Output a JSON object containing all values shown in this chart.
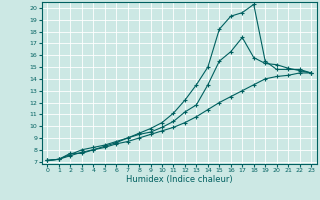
{
  "title": "",
  "xlabel": "Humidex (Indice chaleur)",
  "ylabel": "",
  "background_color": "#cce8e4",
  "line_color": "#006060",
  "grid_color": "#aad4d0",
  "xlim": [
    -0.5,
    23.5
  ],
  "ylim": [
    6.8,
    20.5
  ],
  "yticks": [
    7,
    8,
    9,
    10,
    11,
    12,
    13,
    14,
    15,
    16,
    17,
    18,
    19,
    20
  ],
  "xticks": [
    0,
    1,
    2,
    3,
    4,
    5,
    6,
    7,
    8,
    9,
    10,
    11,
    12,
    13,
    14,
    15,
    16,
    17,
    18,
    19,
    20,
    21,
    22,
    23
  ],
  "curve1_x": [
    0,
    1,
    2,
    3,
    4,
    5,
    6,
    7,
    8,
    9,
    10,
    11,
    12,
    13,
    14,
    15,
    16,
    17,
    18,
    19,
    20,
    21,
    22,
    23
  ],
  "curve1_y": [
    7.1,
    7.2,
    7.7,
    7.7,
    8.0,
    8.3,
    8.6,
    9.0,
    9.4,
    9.8,
    10.3,
    11.1,
    12.2,
    13.5,
    15.0,
    18.2,
    19.3,
    19.6,
    20.3,
    15.5,
    14.8,
    14.8,
    14.8,
    14.5
  ],
  "curve2_x": [
    0,
    1,
    2,
    3,
    4,
    5,
    6,
    7,
    8,
    9,
    10,
    11,
    12,
    13,
    14,
    15,
    16,
    17,
    18,
    19,
    20,
    21,
    22,
    23
  ],
  "curve2_y": [
    7.1,
    7.2,
    7.6,
    8.0,
    8.2,
    8.4,
    8.7,
    9.0,
    9.3,
    9.5,
    9.9,
    10.4,
    11.2,
    11.8,
    13.5,
    15.5,
    16.3,
    17.5,
    15.8,
    15.3,
    15.2,
    14.9,
    14.7,
    14.5
  ],
  "curve3_x": [
    0,
    1,
    2,
    3,
    4,
    5,
    6,
    7,
    8,
    9,
    10,
    11,
    12,
    13,
    14,
    15,
    16,
    17,
    18,
    19,
    20,
    21,
    22,
    23
  ],
  "curve3_y": [
    7.1,
    7.2,
    7.5,
    7.8,
    8.0,
    8.2,
    8.5,
    8.7,
    9.0,
    9.3,
    9.6,
    9.9,
    10.3,
    10.8,
    11.4,
    12.0,
    12.5,
    13.0,
    13.5,
    14.0,
    14.2,
    14.3,
    14.5,
    14.5
  ]
}
